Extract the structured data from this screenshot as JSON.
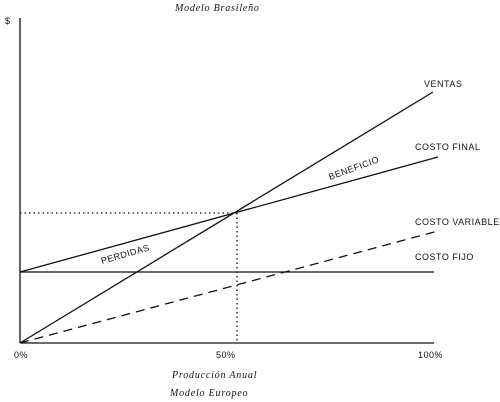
{
  "header": {
    "title": "Modelo Brasileño",
    "y_axis": "$"
  },
  "lines": {
    "ventas": "VENTAS",
    "costo_final": "COSTO FINAL",
    "costo_variable": "COSTO VARIABLE",
    "costo_fijo": "COSTO FIJO"
  },
  "regions": {
    "perdidas": "PERDIDAS",
    "beneficio": "BENEFICIO"
  },
  "x_axis": {
    "ticks": [
      "0%",
      "50%",
      "100%"
    ],
    "label": "Producción Anual"
  },
  "footer": {
    "subtitle": "Modelo Europeo"
  }
}
